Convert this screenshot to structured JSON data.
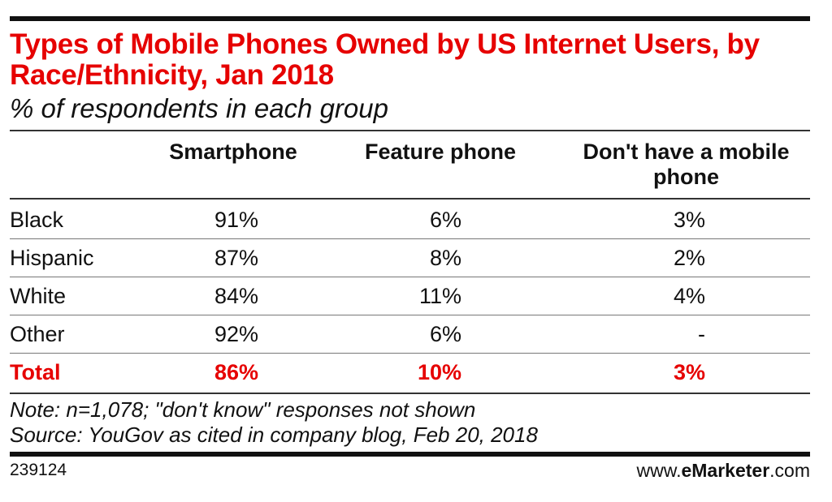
{
  "chart_data": {
    "type": "table",
    "title": "Types of Mobile Phones Owned by US Internet Users, by Race/Ethnicity, Jan 2018",
    "subtitle": "% of respondents in each group",
    "columns": [
      "Smartphone",
      "Feature phone",
      "Don't have a mobile phone"
    ],
    "rows": [
      {
        "label": "Black",
        "values": [
          "91%",
          "6%",
          "3%"
        ]
      },
      {
        "label": "Hispanic",
        "values": [
          "87%",
          "8%",
          "2%"
        ]
      },
      {
        "label": "White",
        "values": [
          "84%",
          "11%",
          "4%"
        ]
      },
      {
        "label": "Other",
        "values": [
          "92%",
          "6%",
          "-"
        ]
      }
    ],
    "total": {
      "label": "Total",
      "values": [
        "86%",
        "10%",
        "3%"
      ]
    },
    "accent_color": "#e60000"
  },
  "notes": {
    "note": "Note: n=1,078; \"don't know\" responses not shown",
    "source": "Source: YouGov as cited in company blog, Feb 20, 2018"
  },
  "footer": {
    "chart_id": "239124",
    "brand_prefix": "www.",
    "brand_e": "e",
    "brand_name": "Marketer",
    "brand_suffix": ".com"
  }
}
